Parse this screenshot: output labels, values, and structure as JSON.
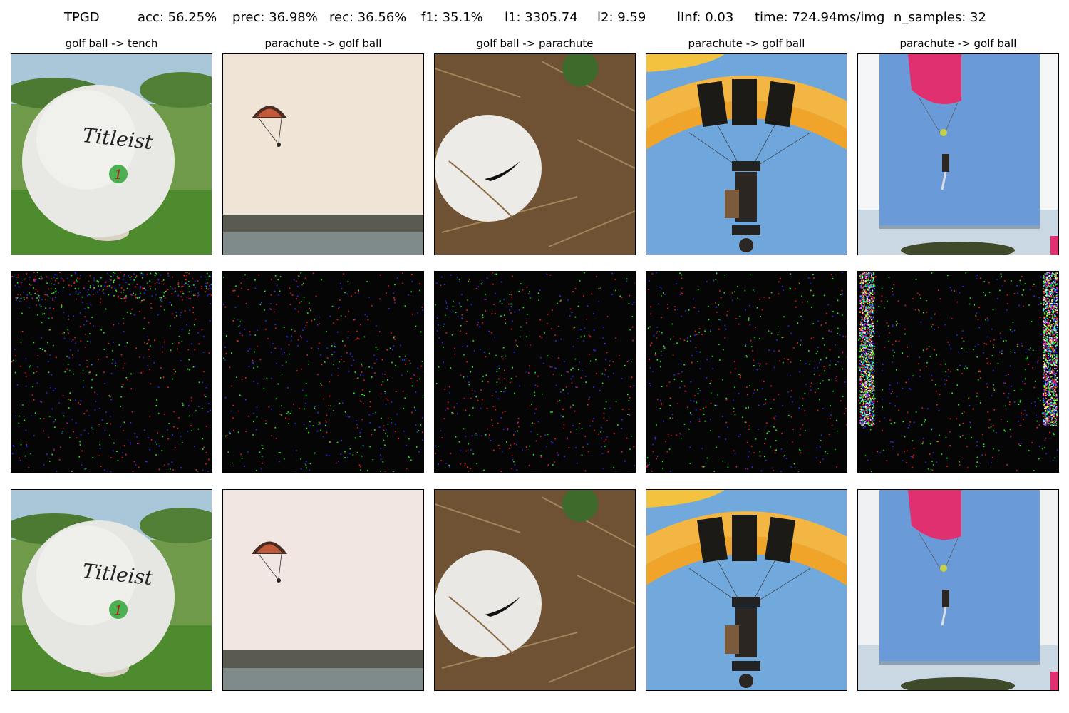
{
  "header": {
    "method": "TPGD",
    "acc": "acc: 56.25%",
    "prec": "prec: 36.98%",
    "rec": "rec: 36.56%",
    "f1": "f1: 35.1%",
    "l1": "l1: 3305.74",
    "l2": "l2: 9.59",
    "linf": "lInf: 0.03",
    "time": "time: 724.94ms/img",
    "n_samples": "n_samples: 32"
  },
  "columns": [
    {
      "title": "golf ball -> tench"
    },
    {
      "title": "parachute -> golf ball"
    },
    {
      "title": "golf ball -> parachute"
    },
    {
      "title": "parachute -> golf ball"
    },
    {
      "title": "parachute -> golf ball"
    }
  ],
  "logo_text": "Titleist",
  "colors": {
    "noise_bg": "#050505",
    "sky_blue": "#6fa7dc",
    "canopy_orange": "#f0a52a",
    "grass_green": "#4e8a2e"
  }
}
